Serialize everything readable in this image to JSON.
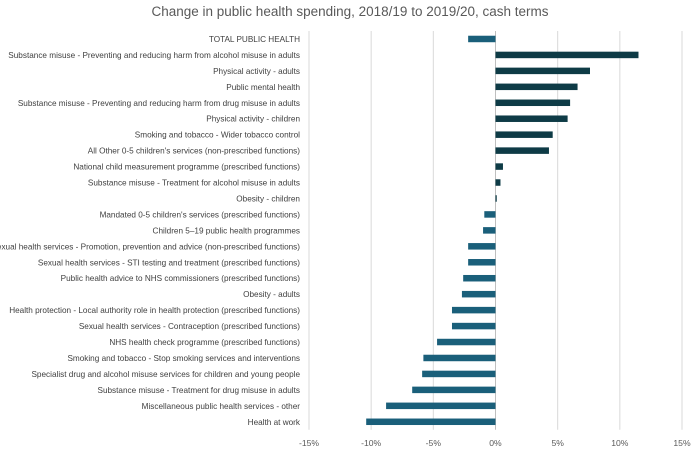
{
  "chart_data": {
    "type": "bar",
    "orientation": "horizontal",
    "title": "Change in public health spending, 2018/19 to 2019/20, cash terms",
    "xlabel": "",
    "ylabel": "",
    "xlim": [
      -15,
      15
    ],
    "xticks": [
      -15,
      -10,
      -5,
      0,
      5,
      10,
      15
    ],
    "xtick_labels": [
      "-15%",
      "-10%",
      "-5%",
      "0%",
      "5%",
      "10%",
      "15%"
    ],
    "grid": true,
    "colors": {
      "highlight": "#1f4e5f",
      "positive": "#0e3b46",
      "negative": "#1a5f7a"
    },
    "categories": [
      "TOTAL PUBLIC HEALTH",
      "Substance misuse - Preventing and reducing harm from alcohol misuse in adults",
      "Physical activity - adults",
      "Public mental health",
      "Substance misuse - Preventing and reducing harm from drug misuse in adults",
      "Physical activity - children",
      "Smoking and tobacco - Wider tobacco control",
      "All Other 0-5 children's services (non-prescribed functions)",
      "National child measurement programme (prescribed functions)",
      "Substance misuse - Treatment for alcohol misuse in adults",
      "Obesity - children",
      "Mandated 0-5 children's services (prescribed functions)",
      "Children 5–19 public health programmes",
      "Sexual health services - Promotion, prevention and advice (non-prescribed functions)",
      "Sexual health services - STI testing and treatment (prescribed functions)",
      "Public health advice to NHS commissioners (prescribed functions)",
      "Obesity - adults",
      "Health protection - Local authority role in health protection  (prescribed functions)",
      "Sexual health services - Contraception  (prescribed functions)",
      "NHS health check programme  (prescribed functions)",
      "Smoking and tobacco - Stop smoking services and interventions",
      "Specialist drug and alcohol misuse services for children and young people",
      "Substance misuse - Treatment for drug misuse in adults",
      "Miscellaneous public health services - other",
      "Health at work"
    ],
    "values": [
      -2.2,
      11.5,
      7.6,
      6.6,
      6.0,
      5.8,
      4.6,
      4.3,
      0.6,
      0.4,
      0.1,
      -0.9,
      -1.0,
      -2.2,
      -2.2,
      -2.6,
      -2.7,
      -3.5,
      -3.5,
      -4.7,
      -5.8,
      -5.9,
      -6.7,
      -8.8,
      -10.4
    ]
  }
}
